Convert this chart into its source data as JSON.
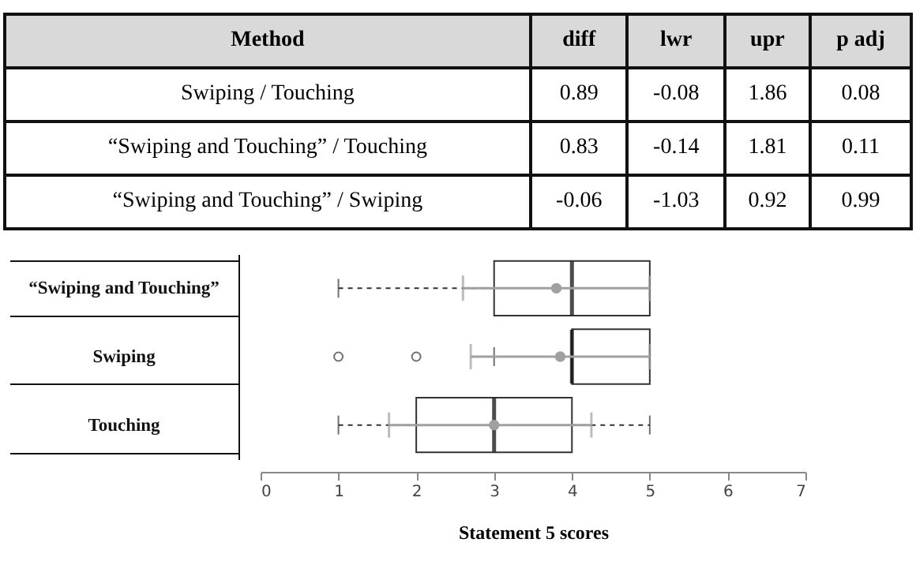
{
  "chart_data": [
    {
      "type": "other",
      "annotations": [
        "Method",
        "diff",
        "lwr",
        "upr",
        "p adj",
        "Swiping / Touching",
        "0.89",
        "-0.08",
        "1.86",
        "0.08",
        "“Swiping and Touching” / Touching",
        "0.83",
        "-0.14",
        "1.81",
        "0.11",
        "“Swiping and Touching” / Swiping",
        "-0.06",
        "-1.03",
        "0.92",
        "0.99"
      ]
    },
    {
      "type": "box",
      "orientation": "horizontal",
      "categories": [
        "“Swiping and Touching”",
        "Swiping",
        "Touching"
      ],
      "xlabel": "Statement 5 scores",
      "xlim": [
        0,
        7
      ],
      "xticks": [
        0,
        1,
        2,
        3,
        4,
        5,
        6,
        7
      ],
      "series": [
        {
          "type": "box",
          "color": "#333333",
          "line_style": "dashed",
          "boxes": [
            {
              "low": 1,
              "q1": 3,
              "median": 4,
              "q3": 5,
              "high": 5
            },
            {
              "low": 3,
              "q1": 4,
              "median": 4,
              "q3": 5,
              "high": 5,
              "outliers": [
                1,
                2
              ]
            },
            {
              "low": 1,
              "q1": 2,
              "median": 3,
              "q3": 4,
              "high": 5
            }
          ]
        },
        {
          "type": "scatter",
          "color": "#a0a0a0",
          "marker": "circle",
          "x": [
            "“Swiping and Touching”",
            "Swiping",
            "Touching"
          ],
          "values": [
            3.8,
            3.85,
            3.0
          ],
          "errors": [
            [
              2.6,
              5
            ],
            [
              2.7,
              5
            ],
            [
              1.65,
              4.25
            ]
          ]
        }
      ]
    }
  ]
}
